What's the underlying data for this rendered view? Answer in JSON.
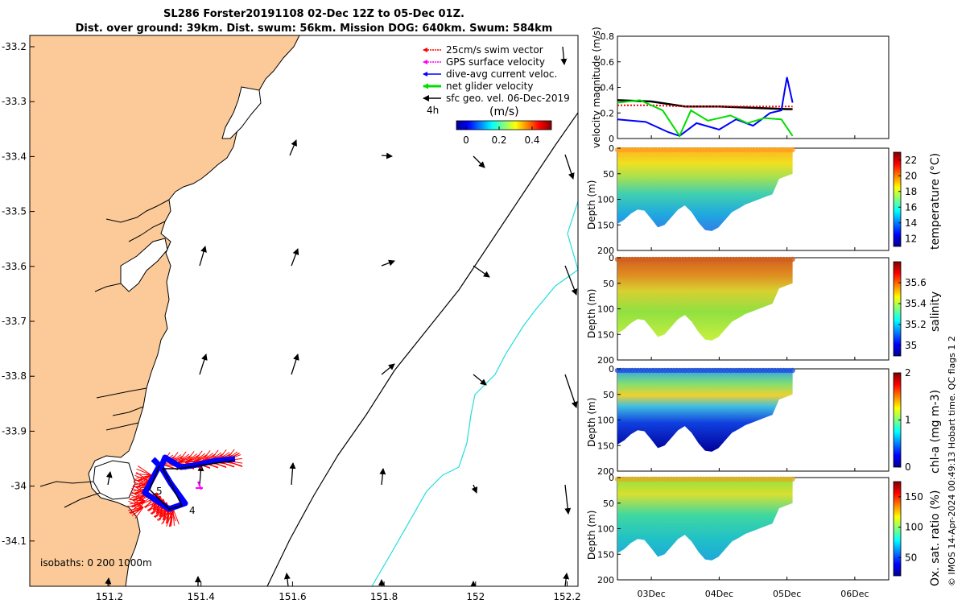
{
  "title": {
    "line1": "SL286 Forster20191108 02-Dec 12Z to 05-Dec 01Z.",
    "line2": "Dist. over ground: 39km. Dist. swum: 56km. Mission DOG: 640km. Swum: 584km"
  },
  "map": {
    "x_ticks": [
      "151.2",
      "151.4",
      "151.6",
      "151.8",
      "152",
      "152.2"
    ],
    "y_ticks": [
      "-33.2",
      "-33.3",
      "-33.4",
      "-33.5",
      "-33.6",
      "-33.7",
      "-33.8",
      "-33.9",
      "-34",
      "-34.1"
    ],
    "legend": [
      {
        "label": "25cm/s swim vector",
        "color": "#ff0000"
      },
      {
        "label": "GPS surface velocity",
        "color": "#ff00ff"
      },
      {
        "label": "dive-avg current veloc.",
        "color": "#0000ff"
      },
      {
        "label": "net glider velocity",
        "color": "#00dd00"
      },
      {
        "label": "sfc geo. vel. 06-Dec-2019",
        "color": "#000000"
      }
    ],
    "time_label": "4h",
    "colorbar_title": "(m/s)",
    "colorbar_ticks": [
      "0",
      "0.2",
      "0.4"
    ],
    "isobaths_label": "isobaths: 0   200  1000m",
    "day_labels": [
      "5",
      "4"
    ],
    "colors": {
      "land": "#fbca98",
      "isobath_200": "#000000",
      "isobath_1000": "#22dddd"
    }
  },
  "chart_data": [
    {
      "type": "line",
      "ylabel": "velocity magnitude (m/s)",
      "ylim": [
        0,
        0.8
      ],
      "y_ticks": [
        "0",
        "0.2",
        "0.4",
        "0.6",
        "0.8"
      ],
      "x_dates": [
        "2019-12-02T12:00",
        "2019-12-06T12:00"
      ],
      "series": [
        {
          "color": "#000000",
          "x": [
            "2019-12-02T12:00",
            "2019-12-03T00:00",
            "2019-12-03T12:00",
            "2019-12-04T00:00",
            "2019-12-04T12:00",
            "2019-12-05T00:00",
            "2019-12-05T02:00"
          ],
          "y": [
            0.3,
            0.29,
            0.25,
            0.25,
            0.24,
            0.23,
            0.23
          ]
        },
        {
          "color": "#ff0000",
          "x": [
            "2019-12-02T12:00",
            "2019-12-03T00:00",
            "2019-12-03T12:00",
            "2019-12-04T00:00",
            "2019-12-04T12:00",
            "2019-12-05T00:00",
            "2019-12-05T02:00"
          ],
          "y": [
            0.26,
            0.26,
            0.25,
            0.25,
            0.25,
            0.25,
            0.25
          ]
        },
        {
          "color": "#0000ff",
          "x": [
            "2019-12-02T12:00",
            "2019-12-02T22:00",
            "2019-12-03T06:00",
            "2019-12-03T10:00",
            "2019-12-03T16:00",
            "2019-12-04T00:00",
            "2019-12-04T06:00",
            "2019-12-04T12:00",
            "2019-12-04T18:00",
            "2019-12-04T22:00",
            "2019-12-05T00:00",
            "2019-12-05T02:00"
          ],
          "y": [
            0.15,
            0.13,
            0.05,
            0.02,
            0.12,
            0.07,
            0.15,
            0.1,
            0.2,
            0.22,
            0.48,
            0.28
          ]
        },
        {
          "color": "#00dd00",
          "x": [
            "2019-12-02T12:00",
            "2019-12-02T20:00",
            "2019-12-03T04:00",
            "2019-12-03T10:00",
            "2019-12-03T14:00",
            "2019-12-03T20:00",
            "2019-12-04T04:00",
            "2019-12-04T10:00",
            "2019-12-04T16:00",
            "2019-12-04T22:00",
            "2019-12-05T02:00"
          ],
          "y": [
            0.28,
            0.3,
            0.22,
            0.02,
            0.22,
            0.14,
            0.18,
            0.12,
            0.16,
            0.15,
            0.02
          ]
        }
      ]
    },
    {
      "type": "heatmap",
      "ylabel": "Depth (m)",
      "clabel": "temperature (°C)",
      "ylim": [
        200,
        0
      ],
      "y_ticks": [
        "0",
        "50",
        "100",
        "150",
        "200"
      ],
      "c_ticks": [
        "22",
        "20",
        "18",
        "16",
        "14",
        "12"
      ],
      "clim": [
        11,
        23
      ]
    },
    {
      "type": "heatmap",
      "ylabel": "Depth (m)",
      "clabel": "salinity",
      "ylim": [
        200,
        0
      ],
      "y_ticks": [
        "0",
        "50",
        "100",
        "150",
        "200"
      ],
      "c_ticks": [
        "35.6",
        "35.4",
        "35.2",
        "35"
      ],
      "clim": [
        34.9,
        35.8
      ]
    },
    {
      "type": "heatmap",
      "ylabel": "Depth (m)",
      "clabel": "chl-a (mg m-3)",
      "ylim": [
        200,
        0
      ],
      "y_ticks": [
        "0",
        "50",
        "100",
        "150",
        "200"
      ],
      "c_ticks": [
        "2",
        "1",
        "0"
      ],
      "clim": [
        0,
        2
      ]
    },
    {
      "type": "heatmap",
      "ylabel": "Depth (m)",
      "clabel": "Ox. sat. ratio (%)",
      "ylim": [
        200,
        0
      ],
      "y_ticks": [
        "0",
        "50",
        "100",
        "150",
        "200"
      ],
      "x_ticks": [
        "03Dec",
        "04Dec",
        "05Dec",
        "06Dec"
      ],
      "c_ticks": [
        "150",
        "100",
        "50"
      ],
      "clim": [
        20,
        175
      ]
    }
  ],
  "credit": "© IMOS 14-Apr-2024 00:49:13 Hobart time. QC flags 1  2"
}
